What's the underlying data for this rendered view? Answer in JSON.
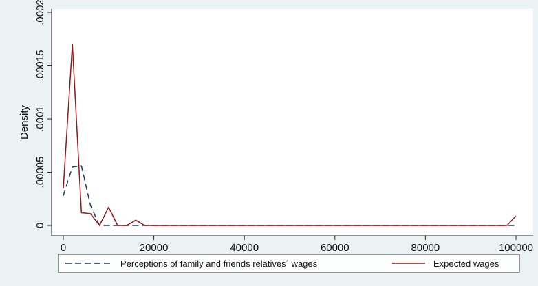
{
  "chart_data": {
    "type": "line",
    "title": "",
    "xlabel": "",
    "ylabel": "Density",
    "xlim": [
      0,
      100000
    ],
    "ylim": [
      0,
      0.0002
    ],
    "xticks": [
      0,
      20000,
      40000,
      60000,
      80000,
      100000
    ],
    "xtick_labels": [
      "0",
      "20000",
      "40000",
      "60000",
      "80000",
      "100000"
    ],
    "yticks": [
      0,
      5e-05,
      0.0001,
      0.00015,
      0.0002
    ],
    "ytick_labels": [
      "0",
      ".00005",
      ".0001",
      ".00015",
      ".0002"
    ],
    "grid": false,
    "legend_position": "bottom",
    "series": [
      {
        "name": "Perceptions of family and friends relatives´ wages",
        "color": "#1f3b5c",
        "dash": "dashed",
        "x": [
          0,
          2000,
          4000,
          6000,
          8000,
          10000,
          12000,
          14000,
          16000,
          18000,
          100000
        ],
        "y": [
          2.8e-05,
          5.5e-05,
          5.6e-05,
          1.9e-05,
          0.0,
          0.0,
          0.0,
          0.0,
          0.0,
          0.0,
          0.0
        ]
      },
      {
        "name": "Expected wages",
        "color": "#8b1a1a",
        "dash": "solid",
        "x": [
          0,
          2000,
          4000,
          6000,
          8000,
          10000,
          12000,
          14000,
          16000,
          18000,
          98000,
          100000
        ],
        "y": [
          3.5e-05,
          0.00017,
          1.2e-05,
          1.1e-05,
          0.0,
          1.7e-05,
          0.0,
          0.0,
          5e-06,
          0.0,
          0.0,
          9e-06
        ]
      }
    ]
  }
}
